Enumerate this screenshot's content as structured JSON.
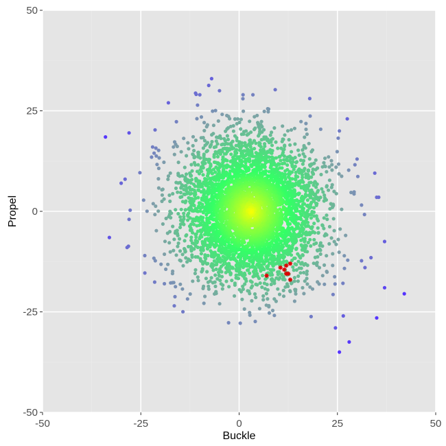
{
  "chart_data": {
    "type": "scatter",
    "title": "",
    "xlabel": "Buckle",
    "ylabel": "Propel",
    "xlim": [
      -50,
      50
    ],
    "ylim": [
      -50,
      50
    ],
    "x_ticks": [
      -50,
      -25,
      0,
      25,
      50
    ],
    "y_ticks": [
      -50,
      -25,
      0,
      25,
      50
    ],
    "x_tick_labels": [
      "-50",
      "-25",
      "0",
      "25",
      "50"
    ],
    "y_tick_labels": [
      "-50",
      "-25",
      "0",
      "25",
      "50"
    ],
    "grid": true,
    "panel_background": "#e5e5e5",
    "grid_major_color": "#ffffff",
    "grid_minor_color": "#ebebeb",
    "color_gradient": [
      "#ffff00",
      "#33ff66",
      "#7fa0a8",
      "#5533ff"
    ],
    "highlight_color": "#dd0000",
    "highlight_marker": "asterisk",
    "cloud_center": [
      3,
      0
    ],
    "cloud_sd": [
      9,
      9
    ],
    "cloud_point_count": 4200,
    "outliers": [
      {
        "x": -34,
        "y": 18.5
      },
      {
        "x": -28,
        "y": 19.5
      },
      {
        "x": -33,
        "y": -6.5
      },
      {
        "x": -28.5,
        "y": -9
      },
      {
        "x": -29,
        "y": 8
      },
      {
        "x": -30,
        "y": 7
      },
      {
        "x": -7,
        "y": 33
      },
      {
        "x": -5,
        "y": 30
      },
      {
        "x": 1,
        "y": 29
      },
      {
        "x": 3.5,
        "y": 29
      },
      {
        "x": -18,
        "y": 27
      },
      {
        "x": 25.5,
        "y": 20
      },
      {
        "x": 27.5,
        "y": 23
      },
      {
        "x": 42,
        "y": -20.5
      },
      {
        "x": 37,
        "y": -7.5
      },
      {
        "x": 37,
        "y": -19
      },
      {
        "x": 35,
        "y": -26.5
      },
      {
        "x": 25.5,
        "y": -35
      },
      {
        "x": 28,
        "y": -32.5
      },
      {
        "x": 24.5,
        "y": -29
      },
      {
        "x": 35.5,
        "y": 3.5
      },
      {
        "x": 34.5,
        "y": 9.5
      },
      {
        "x": 26.5,
        "y": -26
      },
      {
        "x": -16.5,
        "y": -23.5
      },
      {
        "x": -19,
        "y": -18
      },
      {
        "x": 35,
        "y": 3.5
      },
      {
        "x": -28,
        "y": -2
      },
      {
        "x": -24,
        "y": -11
      },
      {
        "x": 32,
        "y": -14
      },
      {
        "x": 30,
        "y": 13
      },
      {
        "x": -22,
        "y": 16
      },
      {
        "x": -10,
        "y": 29
      }
    ],
    "highlighted_points": [
      {
        "x": 7,
        "y": -16
      },
      {
        "x": 10.5,
        "y": -14
      },
      {
        "x": 11.5,
        "y": -14.5
      },
      {
        "x": 12,
        "y": -13.5
      },
      {
        "x": 13,
        "y": -13
      },
      {
        "x": 12,
        "y": -15.5
      },
      {
        "x": 12.5,
        "y": -15.5
      },
      {
        "x": 13,
        "y": -17
      }
    ]
  }
}
